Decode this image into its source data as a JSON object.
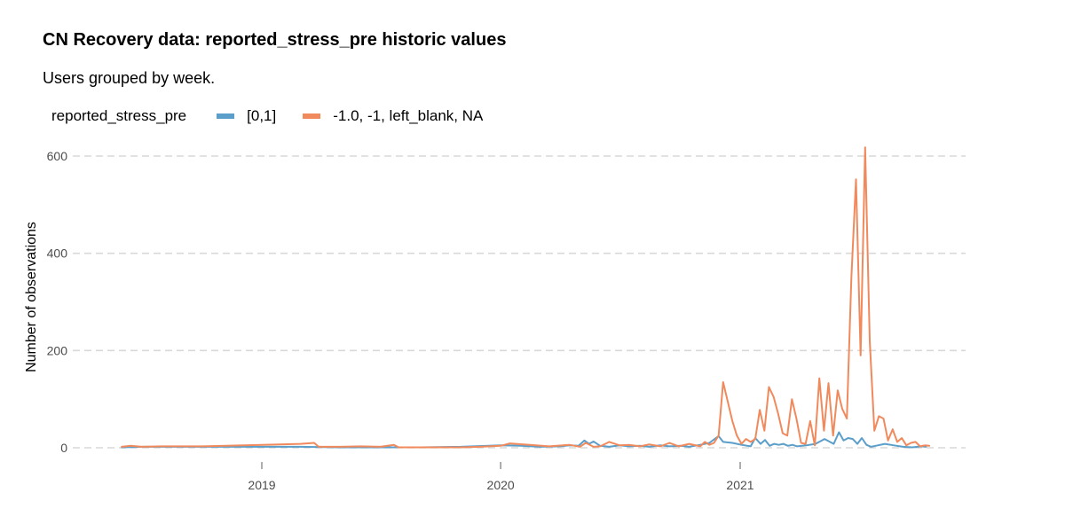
{
  "chart_data": {
    "type": "line",
    "title": "CN Recovery data: reported_stress_pre historic values",
    "subtitle": "Users grouped by week.",
    "xlabel": "",
    "ylabel": "Number of observations",
    "ylim": [
      0,
      620
    ],
    "y_ticks": [
      0,
      200,
      400,
      600
    ],
    "x_range": [
      "2018-05-15",
      "2021-11-01"
    ],
    "x_ticks": [
      {
        "date": "2019-01-01",
        "label": "2019"
      },
      {
        "date": "2020-01-01",
        "label": "2020"
      },
      {
        "date": "2021-01-01",
        "label": "2021"
      }
    ],
    "grid": "horizontal dashed",
    "legend": {
      "title": "reported_stress_pre",
      "position": "top-left"
    },
    "series": [
      {
        "name": "[0,1]",
        "color": "#5b9ec9",
        "points": [
          [
            "2018-06-01",
            1
          ],
          [
            "2018-07-01",
            2
          ],
          [
            "2018-09-01",
            2
          ],
          [
            "2018-11-01",
            2
          ],
          [
            "2019-01-01",
            2
          ],
          [
            "2019-03-01",
            2
          ],
          [
            "2019-05-01",
            1
          ],
          [
            "2019-07-01",
            1
          ],
          [
            "2019-09-01",
            1
          ],
          [
            "2019-11-01",
            2
          ],
          [
            "2020-01-01",
            5
          ],
          [
            "2020-02-01",
            4
          ],
          [
            "2020-03-01",
            2
          ],
          [
            "2020-04-01",
            3
          ],
          [
            "2020-04-15",
            5
          ],
          [
            "2020-04-29",
            4
          ],
          [
            "2020-05-08",
            15
          ],
          [
            "2020-05-15",
            8
          ],
          [
            "2020-05-22",
            13
          ],
          [
            "2020-06-01",
            4
          ],
          [
            "2020-06-15",
            2
          ],
          [
            "2020-07-01",
            5
          ],
          [
            "2020-07-15",
            3
          ],
          [
            "2020-08-01",
            4
          ],
          [
            "2020-08-15",
            2
          ],
          [
            "2020-09-01",
            5
          ],
          [
            "2020-09-15",
            3
          ],
          [
            "2020-10-01",
            4
          ],
          [
            "2020-10-15",
            2
          ],
          [
            "2020-11-01",
            6
          ],
          [
            "2020-11-15",
            10
          ],
          [
            "2020-11-29",
            24
          ],
          [
            "2020-12-06",
            12
          ],
          [
            "2020-12-20",
            10
          ],
          [
            "2021-01-03",
            6
          ],
          [
            "2021-01-17",
            3
          ],
          [
            "2021-01-24",
            20
          ],
          [
            "2021-02-01",
            8
          ],
          [
            "2021-02-08",
            16
          ],
          [
            "2021-02-15",
            4
          ],
          [
            "2021-02-22",
            8
          ],
          [
            "2021-03-01",
            6
          ],
          [
            "2021-03-08",
            8
          ],
          [
            "2021-03-15",
            4
          ],
          [
            "2021-03-22",
            6
          ],
          [
            "2021-03-29",
            3
          ],
          [
            "2021-04-12",
            5
          ],
          [
            "2021-04-26",
            8
          ],
          [
            "2021-05-10",
            18
          ],
          [
            "2021-05-24",
            8
          ],
          [
            "2021-06-01",
            32
          ],
          [
            "2021-06-08",
            15
          ],
          [
            "2021-06-15",
            20
          ],
          [
            "2021-06-22",
            18
          ],
          [
            "2021-06-29",
            8
          ],
          [
            "2021-07-06",
            20
          ],
          [
            "2021-07-13",
            6
          ],
          [
            "2021-07-20",
            2
          ],
          [
            "2021-07-27",
            4
          ],
          [
            "2021-08-10",
            8
          ],
          [
            "2021-08-24",
            5
          ],
          [
            "2021-09-07",
            2
          ],
          [
            "2021-09-21",
            1
          ],
          [
            "2021-10-05",
            3
          ],
          [
            "2021-10-12",
            2
          ]
        ]
      },
      {
        "name": "-1.0, -1, left_blank, NA",
        "color": "#f08a5d",
        "points": [
          [
            "2018-06-01",
            2
          ],
          [
            "2018-06-15",
            4
          ],
          [
            "2018-07-01",
            2
          ],
          [
            "2018-08-01",
            3
          ],
          [
            "2018-10-01",
            3
          ],
          [
            "2019-01-01",
            6
          ],
          [
            "2019-03-01",
            8
          ],
          [
            "2019-03-22",
            10
          ],
          [
            "2019-03-29",
            2
          ],
          [
            "2019-05-01",
            2
          ],
          [
            "2019-06-01",
            3
          ],
          [
            "2019-07-01",
            2
          ],
          [
            "2019-07-22",
            6
          ],
          [
            "2019-07-29",
            1
          ],
          [
            "2019-09-01",
            1
          ],
          [
            "2019-11-01",
            1
          ],
          [
            "2019-12-01",
            2
          ],
          [
            "2020-01-01",
            4
          ],
          [
            "2020-01-15",
            9
          ],
          [
            "2020-02-15",
            6
          ],
          [
            "2020-03-15",
            3
          ],
          [
            "2020-04-15",
            6
          ],
          [
            "2020-05-01",
            2
          ],
          [
            "2020-05-10",
            10
          ],
          [
            "2020-05-22",
            2
          ],
          [
            "2020-06-01",
            3
          ],
          [
            "2020-06-15",
            12
          ],
          [
            "2020-07-01",
            5
          ],
          [
            "2020-07-15",
            6
          ],
          [
            "2020-08-01",
            3
          ],
          [
            "2020-08-15",
            7
          ],
          [
            "2020-09-01",
            3
          ],
          [
            "2020-09-15",
            10
          ],
          [
            "2020-09-29",
            3
          ],
          [
            "2020-10-15",
            8
          ],
          [
            "2020-11-01",
            3
          ],
          [
            "2020-11-08",
            12
          ],
          [
            "2020-11-15",
            6
          ],
          [
            "2020-11-22",
            10
          ],
          [
            "2020-11-29",
            25
          ],
          [
            "2020-12-06",
            135
          ],
          [
            "2020-12-13",
            95
          ],
          [
            "2020-12-20",
            55
          ],
          [
            "2020-12-27",
            25
          ],
          [
            "2021-01-03",
            8
          ],
          [
            "2021-01-10",
            18
          ],
          [
            "2021-01-17",
            12
          ],
          [
            "2021-01-24",
            18
          ],
          [
            "2021-01-31",
            78
          ],
          [
            "2021-02-07",
            35
          ],
          [
            "2021-02-14",
            125
          ],
          [
            "2021-02-21",
            105
          ],
          [
            "2021-02-28",
            70
          ],
          [
            "2021-03-07",
            30
          ],
          [
            "2021-03-14",
            25
          ],
          [
            "2021-03-21",
            100
          ],
          [
            "2021-03-28",
            60
          ],
          [
            "2021-04-04",
            10
          ],
          [
            "2021-04-11",
            8
          ],
          [
            "2021-04-18",
            55
          ],
          [
            "2021-04-25",
            5
          ],
          [
            "2021-05-02",
            143
          ],
          [
            "2021-05-09",
            35
          ],
          [
            "2021-05-16",
            133
          ],
          [
            "2021-05-23",
            25
          ],
          [
            "2021-05-30",
            118
          ],
          [
            "2021-06-06",
            80
          ],
          [
            "2021-06-13",
            60
          ],
          [
            "2021-06-20",
            350
          ],
          [
            "2021-06-27",
            552
          ],
          [
            "2021-07-04",
            190
          ],
          [
            "2021-07-11",
            618
          ],
          [
            "2021-07-18",
            220
          ],
          [
            "2021-07-25",
            35
          ],
          [
            "2021-08-01",
            65
          ],
          [
            "2021-08-08",
            60
          ],
          [
            "2021-08-15",
            15
          ],
          [
            "2021-08-22",
            38
          ],
          [
            "2021-08-29",
            12
          ],
          [
            "2021-09-05",
            20
          ],
          [
            "2021-09-12",
            5
          ],
          [
            "2021-09-19",
            10
          ],
          [
            "2021-09-26",
            12
          ],
          [
            "2021-10-03",
            3
          ],
          [
            "2021-10-10",
            5
          ],
          [
            "2021-10-17",
            4
          ]
        ]
      }
    ]
  }
}
